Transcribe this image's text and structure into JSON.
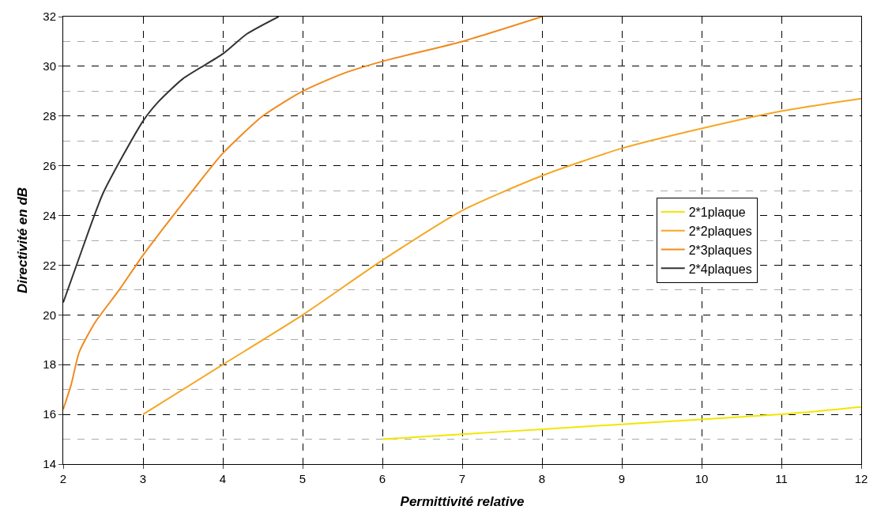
{
  "chart_data": {
    "type": "line",
    "xlabel": "Permittivité relative",
    "ylabel": "Directivité en dB",
    "xlim": [
      2,
      12
    ],
    "xticks": [
      2,
      3,
      4,
      5,
      6,
      7,
      8,
      9,
      10,
      11,
      12
    ],
    "ylim": [
      14,
      32
    ],
    "yticks": [
      14,
      16,
      18,
      20,
      22,
      24,
      26,
      28,
      30,
      32
    ],
    "grid": true,
    "legend": "right",
    "marker": "none",
    "line_style": "solid",
    "series": [
      {
        "name": "2*1plaque",
        "color": "#f2e600",
        "x": [
          6,
          7,
          8,
          9,
          10,
          11,
          12
        ],
        "values": [
          15,
          15.2,
          15.4,
          15.6,
          15.8,
          16,
          16.3
        ]
      },
      {
        "name": "2*2plaques",
        "color": "#f5a623",
        "x": [
          3,
          4,
          5,
          6,
          7,
          8,
          9,
          10,
          11,
          12
        ],
        "values": [
          16,
          18,
          20,
          22.2,
          24.2,
          25.6,
          26.7,
          27.5,
          28.2,
          28.7
        ]
      },
      {
        "name": "2*3plaques",
        "color": "#f08a1e",
        "x": [
          2,
          2.1,
          2.2,
          2.4,
          2.7,
          3,
          3.5,
          4,
          4.5,
          5,
          5.5,
          6,
          7,
          8
        ],
        "values": [
          16.2,
          17.2,
          18.5,
          19.7,
          21,
          22.4,
          24.5,
          26.5,
          28,
          29,
          29.7,
          30.2,
          31,
          32
        ]
      },
      {
        "name": "2*4plaques",
        "color": "#333333",
        "x": [
          2,
          2.2,
          2.5,
          3,
          3.2,
          3.5,
          4,
          4.3,
          4.7
        ],
        "values": [
          20.5,
          22.3,
          24.9,
          27.8,
          28.6,
          29.5,
          30.5,
          31.3,
          32
        ]
      }
    ]
  }
}
